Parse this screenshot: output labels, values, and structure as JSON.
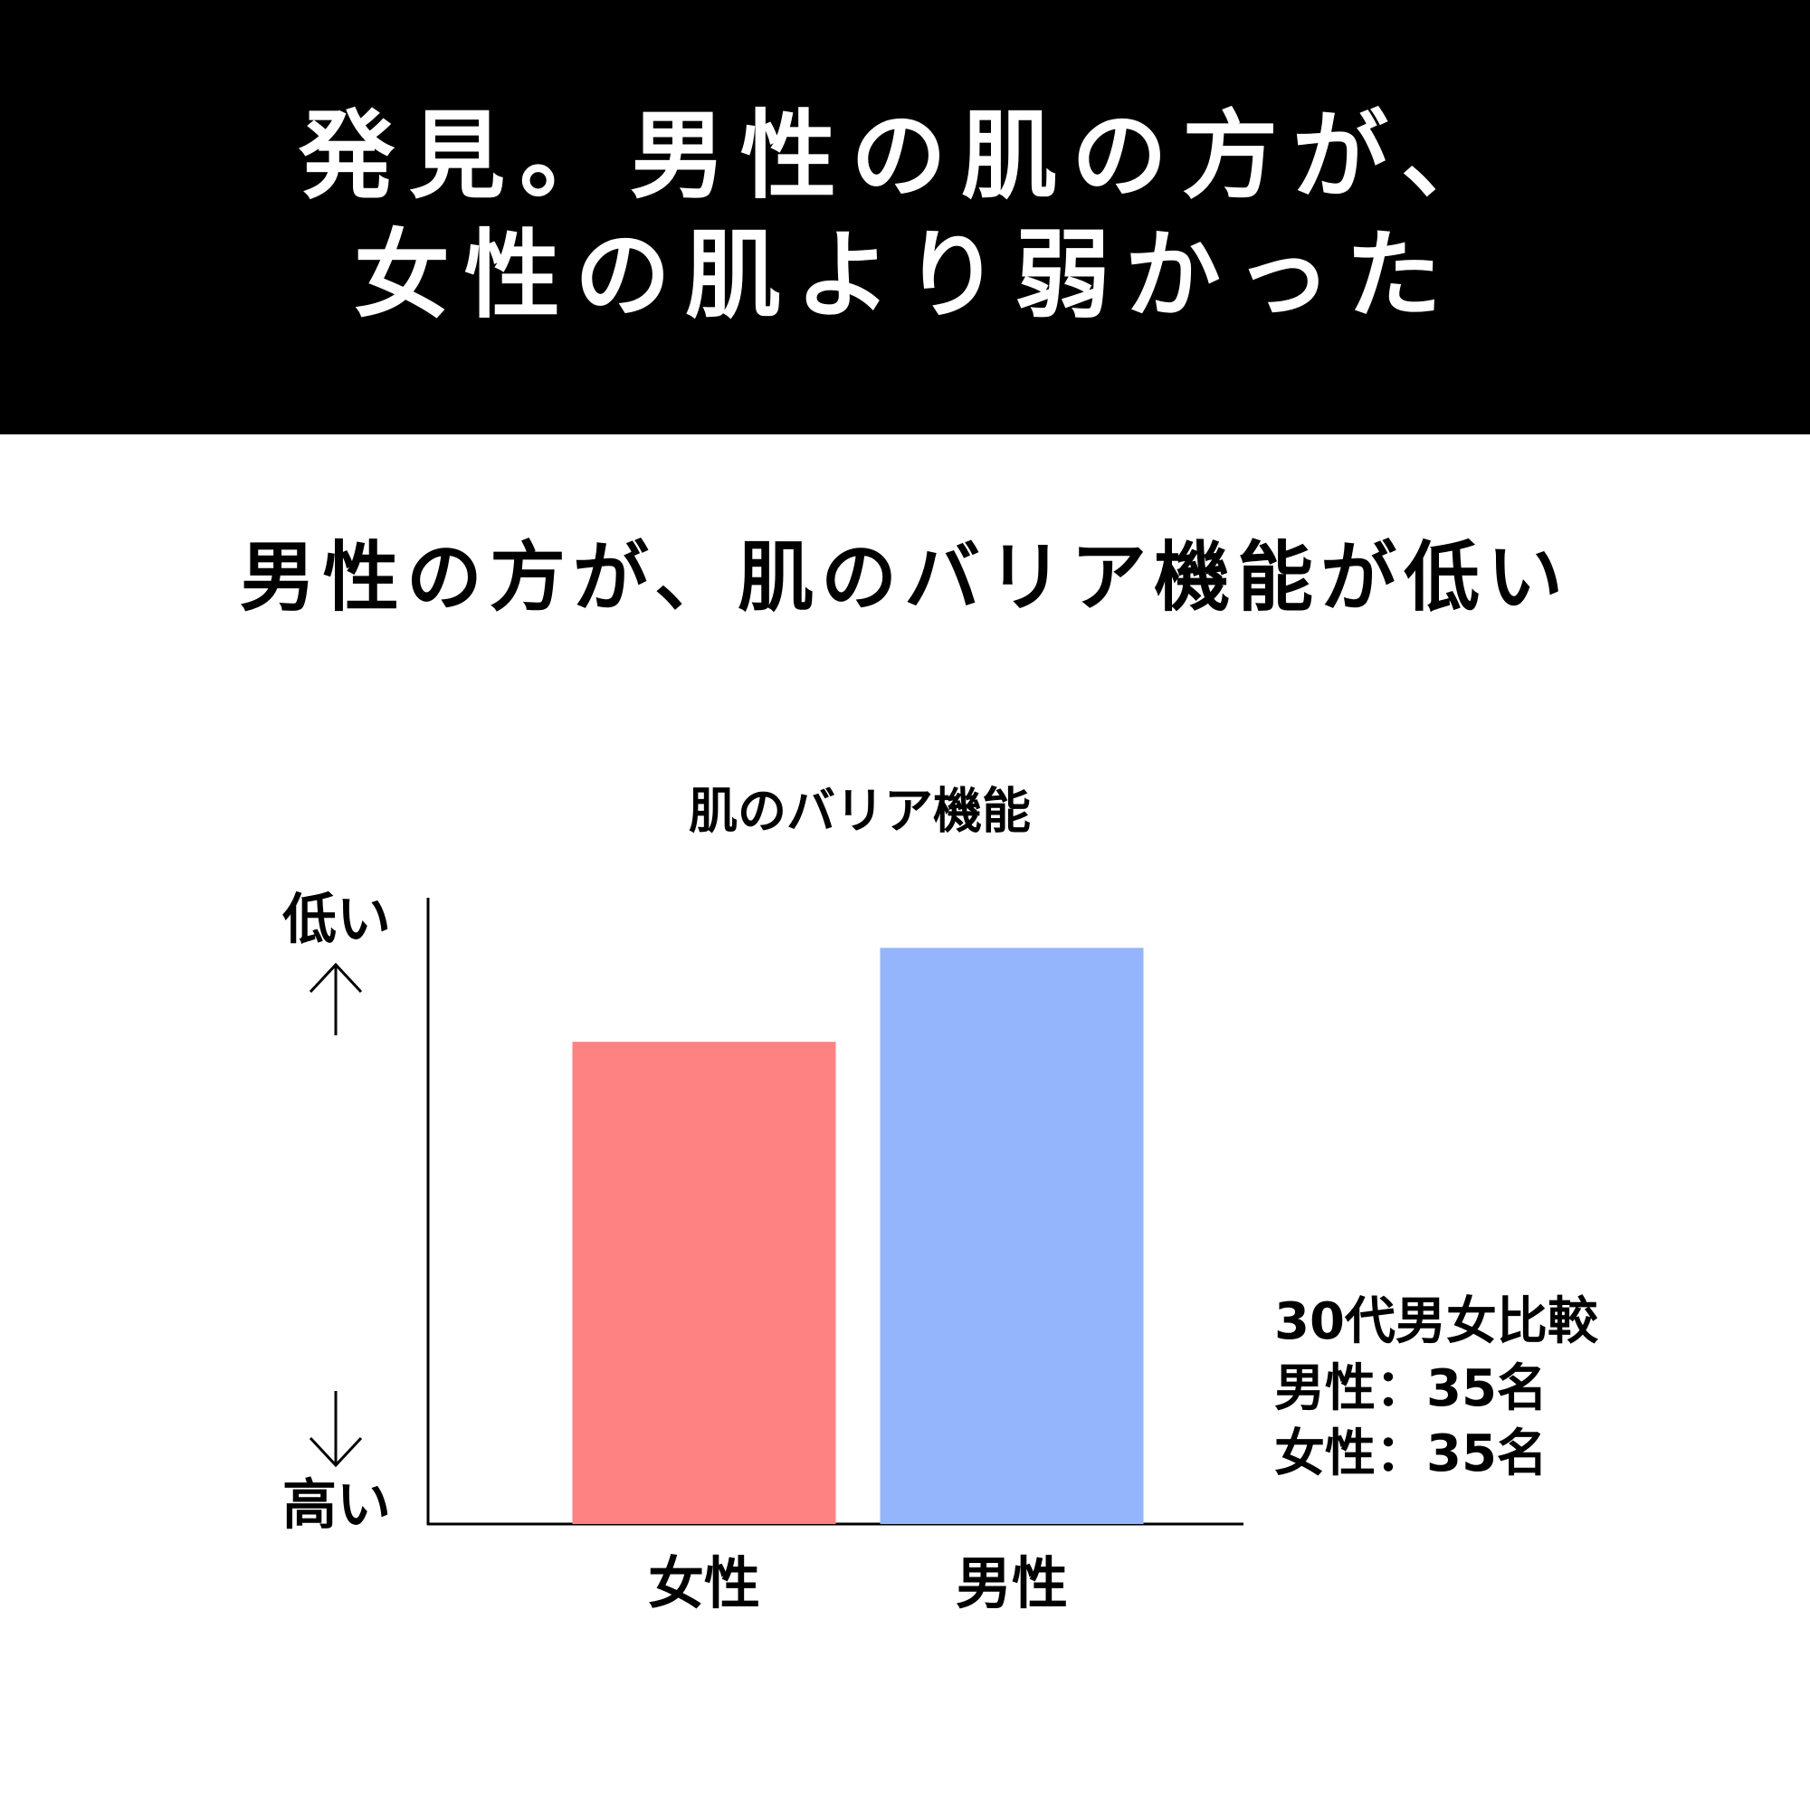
{
  "header": {
    "lines": [
      "発見。男性の肌の方が、",
      "女性の肌より弱かった"
    ]
  },
  "subtitle": "男性の方が、肌のバリア機能が低い",
  "chart_data": {
    "type": "bar",
    "title": "肌のバリア機能",
    "categories": [
      "女性",
      "男性"
    ],
    "values": [
      77,
      92
    ],
    "colors": [
      "#ff8282",
      "#94b4fc"
    ],
    "ylim": [
      0,
      100
    ],
    "y_top_label": "低い",
    "y_bottom_label": "高い",
    "note": [
      "30代男女比較",
      "男性：35名",
      "女性：35名"
    ]
  }
}
